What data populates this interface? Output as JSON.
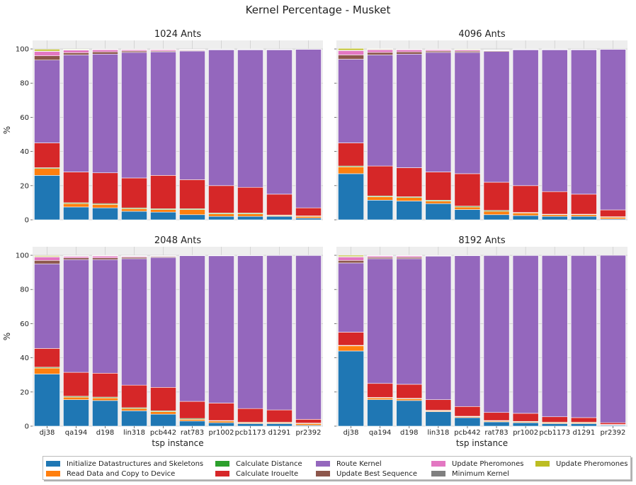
{
  "figure_title": "Kernel Percentage - Musket",
  "chart_data": [
    {
      "type": "bar",
      "stacked": true,
      "title": "1024 Ants",
      "xlabel": "",
      "ylabel": "%",
      "ylim": [
        0,
        105
      ],
      "yticks": [
        0,
        20,
        40,
        60,
        80,
        100
      ],
      "categories": [
        "dj38",
        "qa194",
        "d198",
        "lin318",
        "pcb442",
        "rat783",
        "pr1002",
        "pcb1173",
        "d1291",
        "pr2392"
      ],
      "series": [
        {
          "name": "Initialize Datastructures and Skeletons",
          "values": [
            26,
            7.5,
            7,
            5,
            4.5,
            3,
            2,
            2,
            2,
            1
          ]
        },
        {
          "name": "Read Data and Copy to Device",
          "values": [
            4,
            2,
            2,
            1.5,
            1.5,
            3,
            1.5,
            1.5,
            0.5,
            1
          ]
        },
        {
          "name": "Calculate Distance",
          "values": [
            0.5,
            0.5,
            0.5,
            0.5,
            0.5,
            0.5,
            0.5,
            0.5,
            0.3,
            0.3
          ]
        },
        {
          "name": "Calculate Irouelte",
          "values": [
            14.5,
            18,
            18,
            17.5,
            19.5,
            17,
            16,
            15,
            12.2,
            4.7
          ]
        },
        {
          "name": "Route Kernel",
          "values": [
            48.5,
            68.5,
            69.5,
            73.5,
            72.3,
            75.3,
            79.5,
            80.5,
            84.5,
            92.8
          ]
        },
        {
          "name": "Update Best Sequence",
          "values": [
            2.5,
            1.3,
            1.3,
            0.8,
            0.5,
            0.4,
            0.2,
            0.2,
            0.2,
            0.1
          ]
        },
        {
          "name": "Update Pheromones",
          "values": [
            2.5,
            1.5,
            1.2,
            0.7,
            0.7,
            0.3,
            0.1,
            0.1,
            0.1,
            0
          ]
        },
        {
          "name": "Minimum Kernel",
          "values": [
            0.3,
            0.3,
            0.3,
            0.3,
            0.3,
            0.2,
            0.1,
            0.1,
            0.1,
            0
          ]
        },
        {
          "name": "Update Pheromones",
          "values": [
            1,
            0.3,
            0.2,
            0.2,
            0.2,
            0.1,
            0.1,
            0.1,
            0,
            0
          ]
        }
      ]
    },
    {
      "type": "bar",
      "stacked": true,
      "title": "4096 Ants",
      "xlabel": "",
      "ylabel": "",
      "ylim": [
        0,
        105
      ],
      "yticks": [
        0,
        20,
        40,
        60,
        80,
        100
      ],
      "categories": [
        "dj38",
        "qa194",
        "d198",
        "lin318",
        "pcb442",
        "rat783",
        "pr1002",
        "pcb1173",
        "d1291",
        "pr2392"
      ],
      "series": [
        {
          "name": "Initialize Datastructures and Skeletons",
          "values": [
            27,
            11.5,
            11,
            9.5,
            6,
            3,
            2.5,
            2,
            2,
            0.5
          ]
        },
        {
          "name": "Read Data and Copy to Device",
          "values": [
            4,
            2,
            2,
            1.5,
            1.5,
            2,
            1.5,
            1,
            1,
            1
          ]
        },
        {
          "name": "Calculate Distance",
          "values": [
            0.5,
            0.5,
            0.5,
            0.5,
            0.5,
            0.5,
            0.3,
            0.3,
            0.3,
            0.3
          ]
        },
        {
          "name": "Calculate Irouelte",
          "values": [
            13.5,
            17.5,
            17,
            16.5,
            19,
            16.5,
            15.7,
            13.2,
            11.7,
            4
          ]
        },
        {
          "name": "Route Kernel",
          "values": [
            49,
            65,
            66.5,
            70,
            71,
            76.5,
            79.5,
            83,
            84.5,
            94
          ]
        },
        {
          "name": "Update Best Sequence",
          "values": [
            2.5,
            1.5,
            1.3,
            0.8,
            0.7,
            0.4,
            0.2,
            0.2,
            0.2,
            0.1
          ]
        },
        {
          "name": "Update Pheromones",
          "values": [
            2.5,
            1.5,
            1.2,
            0.7,
            0.7,
            0.3,
            0.1,
            0.1,
            0.1,
            0
          ]
        },
        {
          "name": "Minimum Kernel",
          "values": [
            0.3,
            0.3,
            0.3,
            0.3,
            0.3,
            0.2,
            0.1,
            0.1,
            0.1,
            0
          ]
        },
        {
          "name": "Update Pheromones",
          "values": [
            1,
            0.3,
            0.2,
            0.2,
            0.3,
            0.1,
            0.1,
            0.1,
            0,
            0
          ]
        }
      ]
    },
    {
      "type": "bar",
      "stacked": true,
      "title": "2048 Ants",
      "xlabel": "tsp instance",
      "ylabel": "%",
      "ylim": [
        0,
        105
      ],
      "yticks": [
        0,
        20,
        40,
        60,
        80,
        100
      ],
      "categories": [
        "dj38",
        "qa194",
        "d198",
        "lin318",
        "pcb442",
        "rat783",
        "pr1002",
        "pcb1173",
        "d1291",
        "pr2392"
      ],
      "series": [
        {
          "name": "Initialize Datastructures and Skeletons",
          "values": [
            30.5,
            15.5,
            15,
            9,
            7,
            3,
            2,
            1.5,
            1.5,
            0.5
          ]
        },
        {
          "name": "Read Data and Copy to Device",
          "values": [
            3.5,
            1.5,
            1.5,
            1.3,
            1.5,
            1,
            1,
            0.5,
            0.5,
            1
          ]
        },
        {
          "name": "Calculate Distance",
          "values": [
            0.5,
            0.5,
            0.5,
            0.5,
            0.5,
            0.5,
            0.3,
            0.3,
            0.3,
            0.3
          ]
        },
        {
          "name": "Calculate Irouelte",
          "values": [
            11,
            14,
            14,
            13.2,
            13.7,
            10,
            10.2,
            8,
            7.2,
            2.2
          ]
        },
        {
          "name": "Route Kernel",
          "values": [
            49.5,
            66,
            66.5,
            74,
            76,
            85.3,
            86.2,
            89.5,
            90.4,
            95.9
          ]
        },
        {
          "name": "Update Best Sequence",
          "values": [
            2,
            1,
            1,
            0.8,
            0.5,
            0.2,
            0.2,
            0.2,
            0.1,
            0.1
          ]
        },
        {
          "name": "Update Pheromones",
          "values": [
            2,
            0.8,
            1,
            0.5,
            0.3,
            0,
            0,
            0,
            0,
            0
          ]
        },
        {
          "name": "Minimum Kernel",
          "values": [
            0.3,
            0.3,
            0.3,
            0.3,
            0.2,
            0,
            0.1,
            0,
            0,
            0
          ]
        },
        {
          "name": "Update Pheromones",
          "values": [
            0.5,
            0.2,
            0.2,
            0.2,
            0.1,
            0,
            0,
            0,
            0,
            0
          ]
        }
      ]
    },
    {
      "type": "bar",
      "stacked": true,
      "title": "8192 Ants",
      "xlabel": "tsp instance",
      "ylabel": "",
      "ylim": [
        0,
        105
      ],
      "yticks": [
        0,
        20,
        40,
        60,
        80,
        100
      ],
      "categories": [
        "dj38",
        "qa194",
        "d198",
        "lin318",
        "pcb442",
        "rat783",
        "pr1002",
        "pcb1173",
        "d1291",
        "pr2392"
      ],
      "series": [
        {
          "name": "Initialize Datastructures and Skeletons",
          "values": [
            44,
            15.5,
            15,
            8.5,
            5,
            2.5,
            2,
            1.5,
            1.5,
            0.5
          ]
        },
        {
          "name": "Read Data and Copy to Device",
          "values": [
            3,
            1,
            1,
            0.5,
            0.5,
            0.5,
            0.5,
            0.5,
            0.5,
            0.3
          ]
        },
        {
          "name": "Calculate Distance",
          "values": [
            0.3,
            0.3,
            0.3,
            0.3,
            0.3,
            0.3,
            0.3,
            0.3,
            0.3,
            0.2
          ]
        },
        {
          "name": "Calculate Irouelte",
          "values": [
            7.7,
            8.2,
            8.2,
            6.2,
            5.7,
            4.7,
            4.7,
            3.2,
            2.7,
            1
          ]
        },
        {
          "name": "Route Kernel",
          "values": [
            40.5,
            73,
            73.5,
            84,
            88.3,
            91.9,
            92.4,
            94.4,
            94.9,
            98
          ]
        },
        {
          "name": "Update Best Sequence",
          "values": [
            1.5,
            0.8,
            0.8,
            0.3,
            0.2,
            0.1,
            0.1,
            0.1,
            0.1,
            0
          ]
        },
        {
          "name": "Update Pheromones",
          "values": [
            2,
            0.8,
            0.8,
            0.2,
            0,
            0,
            0,
            0,
            0,
            0
          ]
        },
        {
          "name": "Minimum Kernel",
          "values": [
            0.3,
            0.2,
            0.2,
            0,
            0,
            0,
            0,
            0,
            0,
            0
          ]
        },
        {
          "name": "Update Pheromones",
          "values": [
            0.7,
            0.2,
            0.2,
            0,
            0,
            0,
            0,
            0,
            0,
            0
          ]
        }
      ]
    }
  ],
  "legend": {
    "placement": "bottom",
    "items": [
      {
        "label": "Initialize Datastructures and Skeletons",
        "color": "#1f77b4"
      },
      {
        "label": "Read Data and Copy to Device",
        "color": "#ff7f0e"
      },
      {
        "label": "Calculate Distance",
        "color": "#2ca02c"
      },
      {
        "label": "Calculate Irouelte",
        "color": "#d62728"
      },
      {
        "label": "Route Kernel",
        "color": "#9467bd"
      },
      {
        "label": "Update Best Sequence",
        "color": "#8c564b"
      },
      {
        "label": "Update Pheromones",
        "color": "#e377c2"
      },
      {
        "label": "Minimum Kernel",
        "color": "#7f7f7f"
      },
      {
        "label": "Update Pheromones",
        "color": "#bcbd22"
      }
    ]
  },
  "colors": {
    "plot_background": "#eeeeee",
    "grid": "#cfcfcf",
    "series": [
      "#1f77b4",
      "#ff7f0e",
      "#2ca02c",
      "#d62728",
      "#9467bd",
      "#8c564b",
      "#e377c2",
      "#7f7f7f",
      "#bcbd22"
    ]
  }
}
